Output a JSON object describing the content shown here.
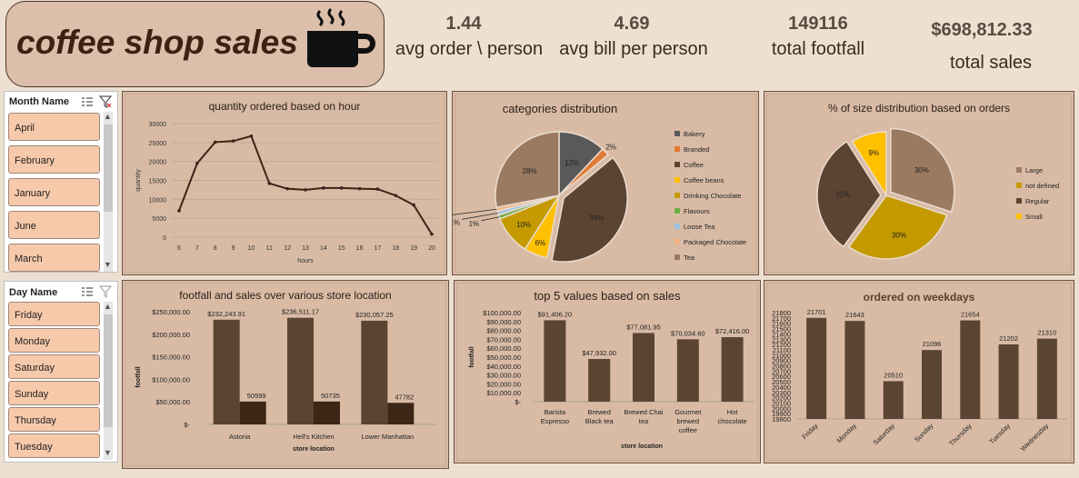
{
  "header": {
    "title": "coffee shop sales",
    "kpis": [
      {
        "value": "1.44",
        "label": "avg order \\ person"
      },
      {
        "value": "4.69",
        "label": "avg bill per person"
      },
      {
        "value": "149116",
        "label": "total footfall"
      },
      {
        "value": "$698,812.33",
        "label": "total sales"
      }
    ]
  },
  "slicers": {
    "month": {
      "title": "Month Name",
      "items": [
        "April",
        "February",
        "January",
        "June",
        "March"
      ]
    },
    "day": {
      "title": "Day Name",
      "items": [
        "Friday",
        "Monday",
        "Saturday",
        "Sunday",
        "Thursday",
        "Tuesday"
      ]
    }
  },
  "colors": {
    "dark": "#5c4433",
    "darker": "#3d2616",
    "line": "#3b2418",
    "gold": "#c49a00",
    "yellow": "#ffc000"
  },
  "chart_data": [
    {
      "id": "hour",
      "type": "line",
      "title": "quantity ordered based on hour",
      "xlabel": "hours",
      "ylabel": "quantity",
      "x": [
        "6",
        "7",
        "8",
        "9",
        "10",
        "11",
        "12",
        "13",
        "14",
        "15",
        "16",
        "17",
        "18",
        "19",
        "20"
      ],
      "values": [
        7000,
        19500,
        25100,
        25400,
        26700,
        14200,
        12800,
        12500,
        13000,
        13000,
        12800,
        12700,
        11000,
        8500,
        800
      ],
      "ylim": [
        0,
        30000
      ],
      "yticks": [
        "0",
        "5000",
        "10000",
        "15000",
        "20000",
        "25000",
        "30000"
      ],
      "grid": true
    },
    {
      "id": "categories",
      "type": "pie",
      "title": "categories distribution",
      "legend_position": "right",
      "slices": [
        {
          "name": "Bakery",
          "value": 12,
          "label": "12%",
          "color": "#595959"
        },
        {
          "name": "Branded",
          "value": 2,
          "label": "2%",
          "color": "#e07a34"
        },
        {
          "name": "Coffee",
          "value": 39,
          "label": "39%",
          "color": "#5c4433"
        },
        {
          "name": "Coffee beans",
          "value": 6,
          "label": "6%",
          "color": "#ffc000"
        },
        {
          "name": "Drinking Chocolate",
          "value": 10,
          "label": "10%",
          "color": "#c49a00"
        },
        {
          "name": "Flavours",
          "value": 1,
          "label": "1%",
          "color": "#70ad47"
        },
        {
          "name": "Loose Tea",
          "value": 1,
          "label": "1%",
          "color": "#9dc3e6"
        },
        {
          "name": "Packaged Chocolate",
          "value": 1,
          "label": "1%",
          "color": "#f4b183"
        },
        {
          "name": "Tea",
          "value": 28,
          "label": "28%",
          "color": "#9b7a62"
        }
      ]
    },
    {
      "id": "size",
      "type": "pie",
      "title": "% of size distribution based on orders",
      "legend_position": "right",
      "slices": [
        {
          "name": "Large",
          "value": 30,
          "label": "30%",
          "color": "#9b7a62"
        },
        {
          "name": "not defined",
          "value": 30,
          "label": "30%",
          "color": "#c49a00"
        },
        {
          "name": "Regular",
          "value": 31,
          "label": "31%",
          "color": "#5c4433"
        },
        {
          "name": "Small",
          "value": 9,
          "label": "9%",
          "color": "#ffc000"
        }
      ]
    },
    {
      "id": "location",
      "type": "bar",
      "title": "footfall and sales over various store location",
      "xlabel": "store location",
      "ylabel": "footfall",
      "categories": [
        "Astoria",
        "Hell's Kitchen",
        "Lower Manhattan"
      ],
      "series": [
        {
          "values": [
            232243.91,
            236511.17,
            230057.25
          ],
          "labels": [
            "$232,243.91",
            "$236,511.17",
            "$230,057.25"
          ]
        },
        {
          "values": [
            50599,
            50735,
            47782
          ],
          "labels": [
            "50599",
            "50735",
            "47782"
          ]
        }
      ],
      "ylim": [
        0,
        250000
      ],
      "yticks": [
        "$-",
        "$50,000.00",
        "$100,000.00",
        "$150,000.00",
        "$200,000.00",
        "$250,000.00"
      ]
    },
    {
      "id": "top5",
      "type": "bar",
      "title": "top 5 values based on sales",
      "xlabel": "store location",
      "ylabel": "footfall",
      "categories": [
        [
          "Barista",
          "Espresso"
        ],
        [
          "Brewed",
          "Black tea"
        ],
        [
          "Brewed Chai",
          "tea"
        ],
        [
          "Gourmet",
          "brewed",
          "coffee"
        ],
        [
          "Hot",
          "chocolate"
        ]
      ],
      "values": [
        91406.2,
        47932,
        77081.95,
        70034.6,
        72416
      ],
      "labels": [
        "$91,406.20",
        "$47,932.00",
        "$77,081.95",
        "$70,034.60",
        "$72,416.00"
      ],
      "ylim": [
        0,
        100000
      ],
      "yticks": [
        "$-",
        "$10,000.00",
        "$20,000.00",
        "$30,000.00",
        "$40,000.00",
        "$50,000.00",
        "$60,000.00",
        "$70,000.00",
        "$80,000.00",
        "$90,000.00",
        "$100,000.00"
      ]
    },
    {
      "id": "weekdays",
      "type": "bar",
      "title": "ordered on weekdays",
      "categories": [
        "Friday",
        "Monday",
        "Saturday",
        "Sunday",
        "Thursday",
        "Tuesday",
        "Wednesday"
      ],
      "values": [
        21701,
        21643,
        20510,
        21096,
        21654,
        21202,
        21310
      ],
      "labels": [
        "21701",
        "21643",
        "20510",
        "21096",
        "21654",
        "21202",
        "21310"
      ],
      "ylim": [
        19800,
        21800
      ],
      "yticks": [
        "19800",
        "19900",
        "20000",
        "20100",
        "20200",
        "20300",
        "20400",
        "20500",
        "20600",
        "20700",
        "20800",
        "20900",
        "21000",
        "21100",
        "21200",
        "21300",
        "21400",
        "21500",
        "21600",
        "21700",
        "21800"
      ]
    }
  ]
}
